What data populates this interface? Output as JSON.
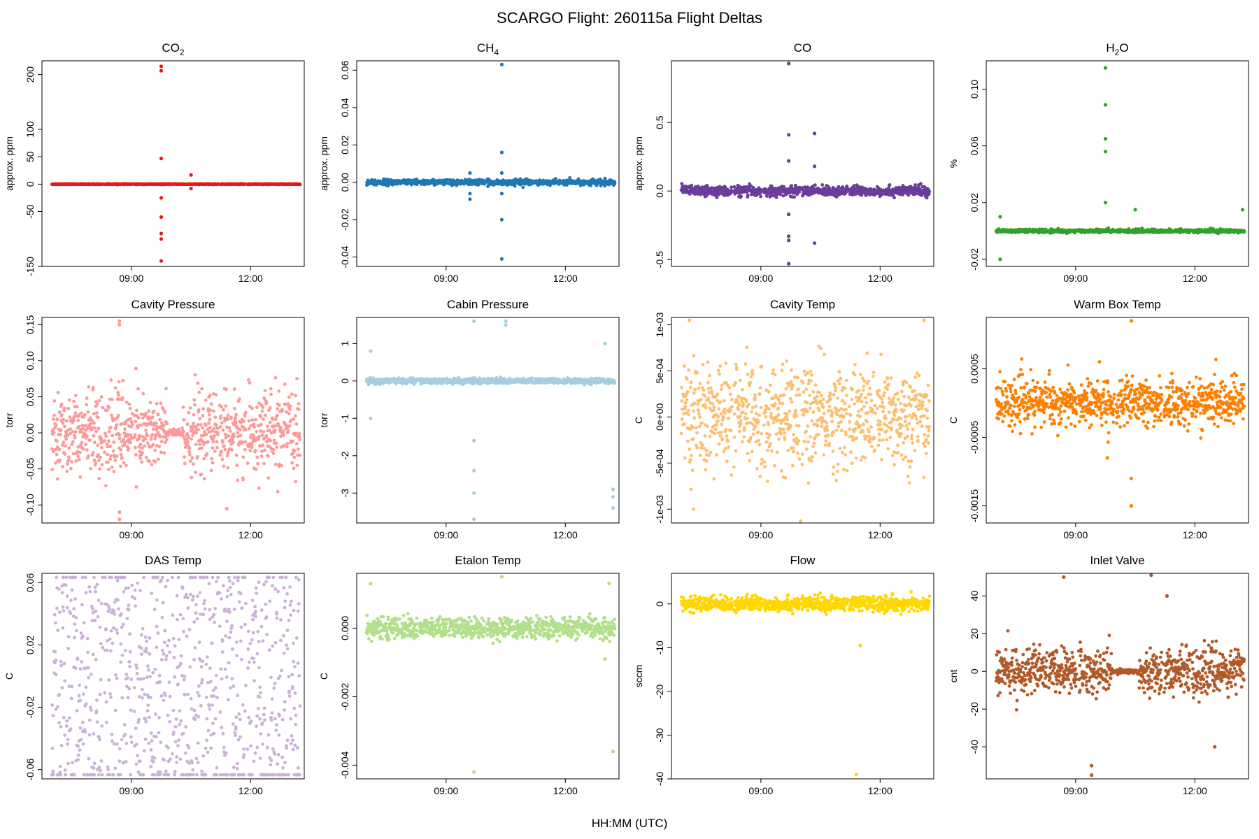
{
  "figure": {
    "title": "SCARGO Flight: 260115a  Flight Deltas",
    "xlabel": "HH:MM (UTC)"
  },
  "chart_data": [
    {
      "type": "scatter",
      "title_main": "CO",
      "title_sub": "2",
      "ylabel": "approx. ppm",
      "color": "#e41a1c",
      "ylim": [
        -150,
        225
      ],
      "yticks": [
        -150,
        -50,
        0,
        50,
        100,
        200
      ],
      "xticks": [
        "09:00",
        "12:00"
      ],
      "profile": {
        "baseline": 0,
        "noise": 0.5,
        "center": 0,
        "amp": 0
      },
      "outliers": [
        [
          9.75,
          215
        ],
        [
          9.75,
          207
        ],
        [
          9.75,
          47
        ],
        [
          9.75,
          -25
        ],
        [
          9.75,
          -60
        ],
        [
          9.75,
          -90
        ],
        [
          9.75,
          -100
        ],
        [
          9.75,
          -140
        ],
        [
          10.5,
          17
        ],
        [
          10.5,
          -8
        ]
      ]
    },
    {
      "type": "scatter",
      "title_main": "CH",
      "title_sub": "4",
      "ylabel": "approx. ppm",
      "color": "#1f78b4",
      "ylim": [
        -0.045,
        0.065
      ],
      "yticks": [
        -0.04,
        -0.02,
        0.0,
        0.02,
        0.04,
        0.06
      ],
      "ytickLabels": [
        "-0.04",
        "-0.02",
        "0.00",
        "0.02",
        "0.04",
        "0.06"
      ],
      "xticks": [
        "09:00",
        "12:00"
      ],
      "profile": {
        "baseline": 0,
        "noise": 0.0012,
        "center": 0,
        "amp": 0
      },
      "outliers": [
        [
          10.4,
          0.063
        ],
        [
          10.4,
          0.016
        ],
        [
          10.4,
          -0.02
        ],
        [
          10.4,
          -0.041
        ],
        [
          9.6,
          -0.006
        ],
        [
          9.6,
          -0.009
        ],
        [
          9.6,
          0.005
        ],
        [
          10.4,
          0.005
        ],
        [
          10.4,
          -0.006
        ]
      ]
    },
    {
      "type": "scatter",
      "title_main": "CO",
      "title_sub": "",
      "ylabel": "approx. ppm",
      "color": "#6a3d9a",
      "ylim": [
        -0.55,
        0.95
      ],
      "yticks": [
        -0.5,
        0.0,
        0.5
      ],
      "ytickLabels": [
        "-0.5",
        "0.0",
        "0.5"
      ],
      "xticks": [
        "09:00",
        "12:00"
      ],
      "profile": {
        "baseline": 0,
        "noise": 0.03,
        "center": 0,
        "amp": 0
      },
      "outliers": [
        [
          9.7,
          0.93
        ],
        [
          9.7,
          0.41
        ],
        [
          10.35,
          0.42
        ],
        [
          9.7,
          0.22
        ],
        [
          10.35,
          0.18
        ],
        [
          9.7,
          -0.17
        ],
        [
          9.7,
          -0.33
        ],
        [
          9.7,
          -0.36
        ],
        [
          10.35,
          -0.38
        ],
        [
          9.7,
          -0.53
        ]
      ]
    },
    {
      "type": "scatter",
      "title_main": "H",
      "title_sub": "2",
      "title_tail": "O",
      "ylabel": "%",
      "color": "#33a02c",
      "ylim": [
        -0.025,
        0.12
      ],
      "yticks": [
        -0.02,
        0.02,
        0.06,
        0.1
      ],
      "ytickLabels": [
        "-0.02",
        "0.02",
        "0.06",
        "0.10"
      ],
      "xticks": [
        "09:00",
        "12:00"
      ],
      "profile": {
        "baseline": 0,
        "noise": 0.001,
        "center": 0,
        "amp": 0
      },
      "outliers": [
        [
          9.75,
          0.115
        ],
        [
          9.75,
          0.089
        ],
        [
          9.75,
          0.065
        ],
        [
          9.75,
          0.056
        ],
        [
          9.75,
          0.02
        ],
        [
          7.1,
          -0.02
        ],
        [
          7.1,
          0.01
        ],
        [
          10.5,
          0.015
        ],
        [
          13.2,
          0.015
        ]
      ]
    },
    {
      "type": "scatter",
      "title_main": "Cavity Pressure",
      "title_sub": "",
      "ylabel": "torr",
      "color": "#fb9a99",
      "ylim": [
        -0.125,
        0.16
      ],
      "yticks": [
        -0.1,
        -0.05,
        0.0,
        0.05,
        0.1,
        0.15
      ],
      "ytickLabels": [
        "-0.10",
        "-0.05",
        "0.00",
        "0.05",
        "0.10",
        "0.15"
      ],
      "xticks": [
        "09:00",
        "12:00"
      ],
      "profile": {
        "baseline": 0,
        "noise": 0.045,
        "center": 0,
        "amp": 0,
        "quiet": [
          9.9,
          10.3
        ]
      },
      "outliers": [
        [
          8.7,
          0.155
        ],
        [
          8.7,
          0.15
        ],
        [
          8.7,
          -0.11
        ],
        [
          8.7,
          -0.12
        ],
        [
          11.4,
          -0.105
        ]
      ]
    },
    {
      "type": "scatter",
      "title_main": "Cabin Pressure",
      "title_sub": "",
      "ylabel": "torr",
      "color": "#a6cee3",
      "ylim": [
        -3.8,
        1.7
      ],
      "yticks": [
        -3,
        -2,
        -1,
        0,
        1
      ],
      "xticks": [
        "09:00",
        "12:00"
      ],
      "profile": {
        "baseline": 0,
        "noise": 0.06,
        "center": 0,
        "amp": 0
      },
      "outliers": [
        [
          9.7,
          1.6
        ],
        [
          9.7,
          -1.6
        ],
        [
          9.7,
          -2.4
        ],
        [
          9.7,
          -3.0
        ],
        [
          9.7,
          -3.7
        ],
        [
          13.2,
          -2.9
        ],
        [
          13.2,
          -3.1
        ],
        [
          13.2,
          -3.4
        ],
        [
          7.1,
          -1.0
        ],
        [
          7.1,
          0.8
        ],
        [
          10.5,
          1.6
        ],
        [
          10.5,
          1.5
        ],
        [
          13.0,
          1.0
        ]
      ]
    },
    {
      "type": "scatter",
      "title_main": "Cavity Temp",
      "title_sub": "",
      "ylabel": "C",
      "color": "#fdbf6f",
      "ylim": [
        -0.00115,
        0.00108
      ],
      "yticks": [
        -0.001,
        -0.0005,
        0,
        0.0005,
        0.001
      ],
      "ytickLabels": [
        "-1e-03",
        "-5e-04",
        "0e+00",
        "5e-04",
        "1e-03"
      ],
      "xticks": [
        "09:00",
        "12:00"
      ],
      "profile": {
        "baseline": 0,
        "noise": 0.00045,
        "center": 0,
        "amp": 0
      },
      "outliers": [
        [
          7.2,
          0.00105
        ],
        [
          10.0,
          -0.00113
        ],
        [
          13.1,
          0.00105
        ],
        [
          7.3,
          -0.001
        ]
      ]
    },
    {
      "type": "scatter",
      "title_main": "Warm Box Temp",
      "title_sub": "",
      "ylabel": "C",
      "color": "#ff7f00",
      "ylim": [
        -0.00175,
        0.00125
      ],
      "yticks": [
        -0.0015,
        -0.0005,
        0.0005
      ],
      "ytickLabels": [
        "-0.0015",
        "-0.0005",
        "0.0005"
      ],
      "xticks": [
        "09:00",
        "12:00"
      ],
      "profile": {
        "baseline": 0,
        "noise": 0.00028,
        "center": 0,
        "amp": 0
      },
      "outliers": [
        [
          10.4,
          0.0012
        ],
        [
          10.4,
          -0.0011
        ],
        [
          10.4,
          -0.0015
        ],
        [
          9.8,
          -0.0008
        ]
      ]
    },
    {
      "type": "scatter",
      "title_main": "DAS Temp",
      "title_sub": "",
      "ylabel": "C",
      "color": "#cab2d6",
      "ylim": [
        -0.066,
        0.066
      ],
      "yticks": [
        -0.06,
        -0.02,
        0.02,
        0.06
      ],
      "ytickLabels": [
        "-0.06",
        "-0.02",
        "0.02",
        "0.06"
      ],
      "xticks": [
        "09:00",
        "12:00"
      ],
      "profile": {
        "baseline": 0,
        "noise": 0.062,
        "center": 0,
        "amp": 0,
        "uniform": true
      },
      "outliers": []
    },
    {
      "type": "scatter",
      "title_main": "Etalon Temp",
      "title_sub": "",
      "ylabel": "C",
      "color": "#b2df8a",
      "ylim": [
        -0.0044,
        0.0016
      ],
      "yticks": [
        -0.004,
        -0.002,
        0.0
      ],
      "ytickLabels": [
        "-0.004",
        "-0.002",
        "0.000"
      ],
      "xticks": [
        "09:00",
        "12:00"
      ],
      "profile": {
        "baseline": 0,
        "noise": 0.00025,
        "center": 0,
        "amp": 0
      },
      "outliers": [
        [
          10.4,
          0.0015
        ],
        [
          7.1,
          0.0013
        ],
        [
          13.2,
          -0.0036
        ],
        [
          9.7,
          -0.0042
        ],
        [
          13.1,
          0.0013
        ],
        [
          13.0,
          -0.0009
        ]
      ]
    },
    {
      "type": "scatter",
      "title_main": "Flow",
      "title_sub": "",
      "ylabel": "sccm",
      "color": "#ffd700",
      "ylim": [
        -40,
        7
      ],
      "yticks": [
        -40,
        -30,
        -20,
        -10,
        0
      ],
      "xticks": [
        "09:00",
        "12:00"
      ],
      "profile": {
        "baseline": 0,
        "noise": 1.4,
        "center": 0,
        "amp": 0
      },
      "outliers": [
        [
          11.5,
          -9.5
        ],
        [
          11.4,
          -39
        ]
      ]
    },
    {
      "type": "scatter",
      "title_main": "Inlet Valve",
      "title_sub": "",
      "ylabel": "cnt",
      "color": "#b15928",
      "ylim": [
        -57,
        52
      ],
      "yticks": [
        -40,
        -20,
        0,
        20,
        40
      ],
      "xticks": [
        "09:00",
        "12:00"
      ],
      "profile": {
        "baseline": 0,
        "noise": 10,
        "center": 0,
        "amp": 0,
        "quiet": [
          9.9,
          10.6
        ]
      },
      "outliers": [
        [
          8.7,
          50
        ],
        [
          9.4,
          -55
        ],
        [
          9.4,
          -50
        ],
        [
          10.9,
          51
        ],
        [
          11.3,
          40
        ],
        [
          12.5,
          -40
        ]
      ]
    }
  ]
}
